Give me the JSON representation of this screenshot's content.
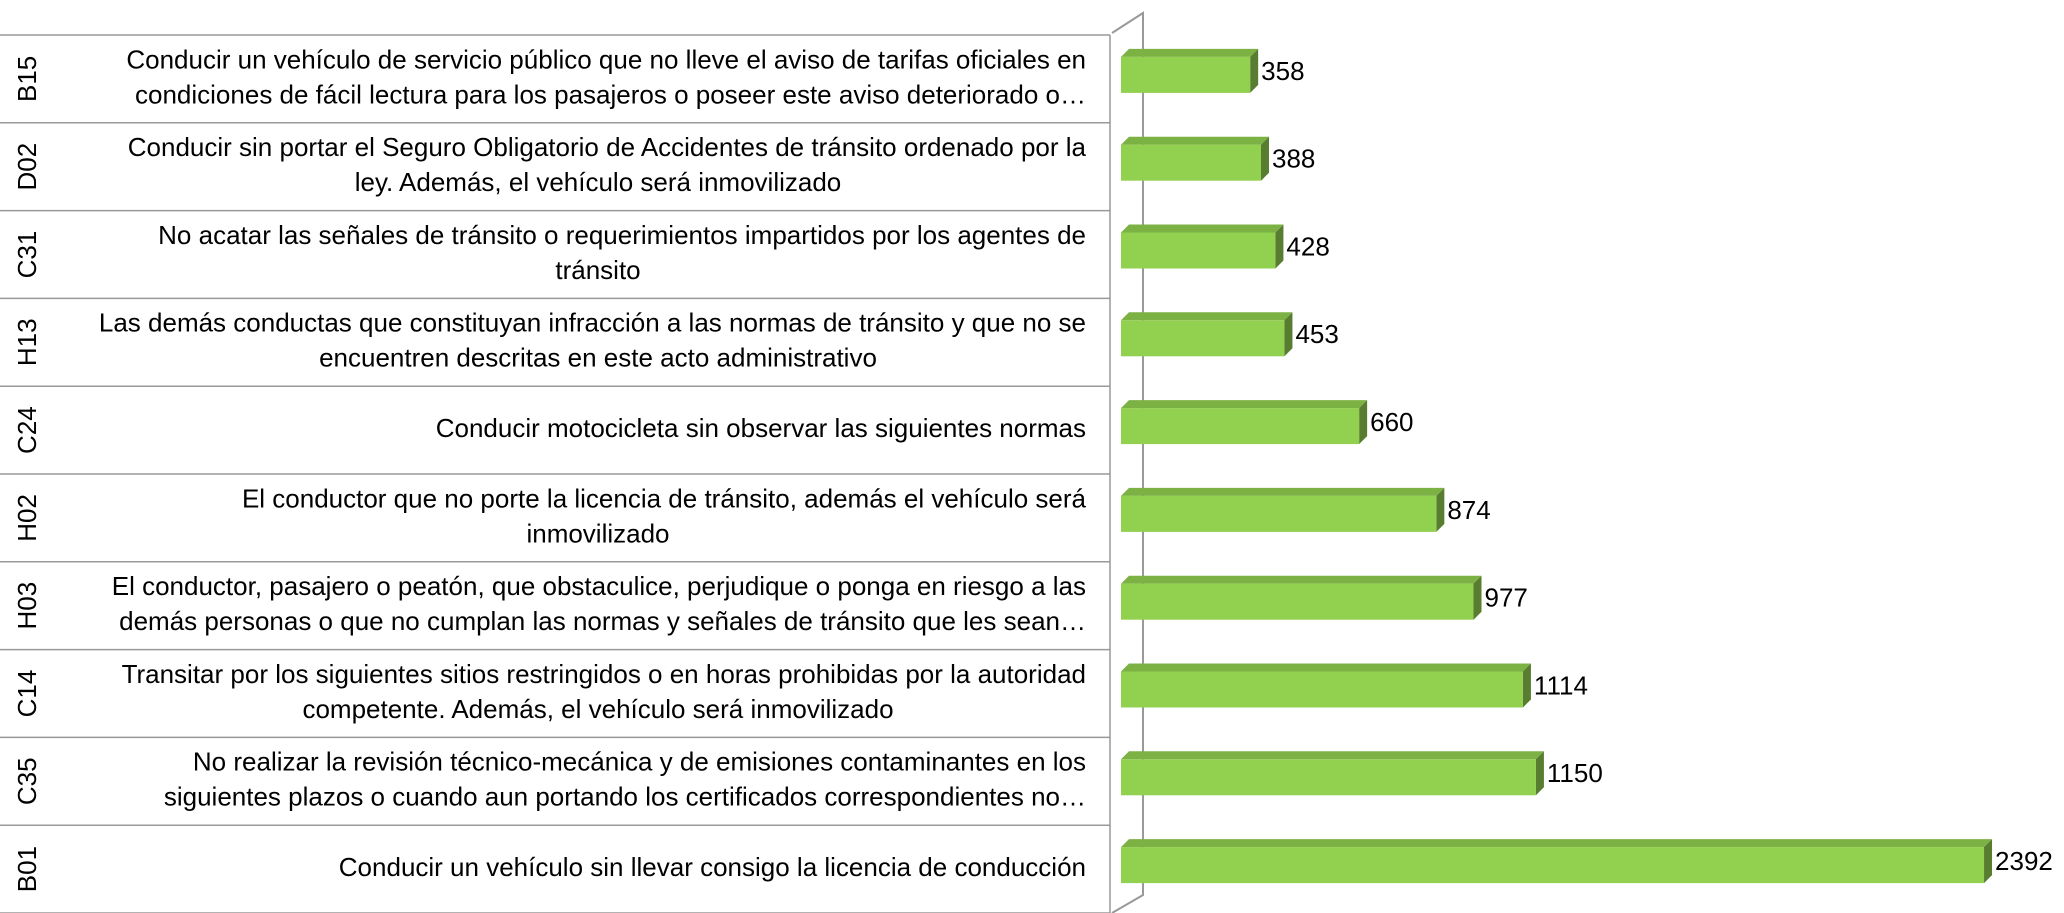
{
  "chart_data": {
    "type": "bar",
    "orientation": "horizontal",
    "codes": [
      "B15",
      "D02",
      "C31",
      "H13",
      "C24",
      "H02",
      "H03",
      "C14",
      "C35",
      "B01"
    ],
    "categories": [
      [
        "Conducir un vehículo de servicio público que no lleve el aviso de tarifas oficiales en",
        "condiciones de fácil lectura para los pasajeros o poseer este aviso deteriorado o…"
      ],
      [
        "Conducir sin portar el Seguro Obligatorio de Accidentes de tránsito ordenado por la",
        "ley. Además, el vehículo será inmovilizado"
      ],
      [
        "No acatar las señales de tránsito o requerimientos impartidos por los agentes de",
        "tránsito"
      ],
      [
        "Las demás conductas que constituyan infracción a las normas de tránsito y que no se",
        "encuentren descritas en este acto administrativo"
      ],
      [
        "Conducir motocicleta sin observar las siguientes normas"
      ],
      [
        "El conductor que no porte la licencia de tránsito, además el vehículo será",
        "inmovilizado"
      ],
      [
        "El conductor, pasajero o peatón, que obstaculice, perjudique o ponga en riesgo a las",
        "demás personas o que no cumplan las normas y señales de tránsito que les sean…"
      ],
      [
        "Transitar por los siguientes sitios restringidos o en horas prohibidas por la autoridad",
        "competente.  Además, el vehículo será inmovilizado"
      ],
      [
        "No realizar la revisión técnico-mecánica y de emisiones contaminantes en los",
        "siguientes plazos o cuando aun portando los certificados correspondientes no…"
      ],
      [
        "Conducir un vehículo sin llevar consigo la licencia de conducción"
      ]
    ],
    "values": [
      358,
      388,
      428,
      453,
      660,
      874,
      977,
      1114,
      1150,
      2392
    ],
    "color": "#92d050",
    "xlim": [
      0,
      2500
    ]
  }
}
